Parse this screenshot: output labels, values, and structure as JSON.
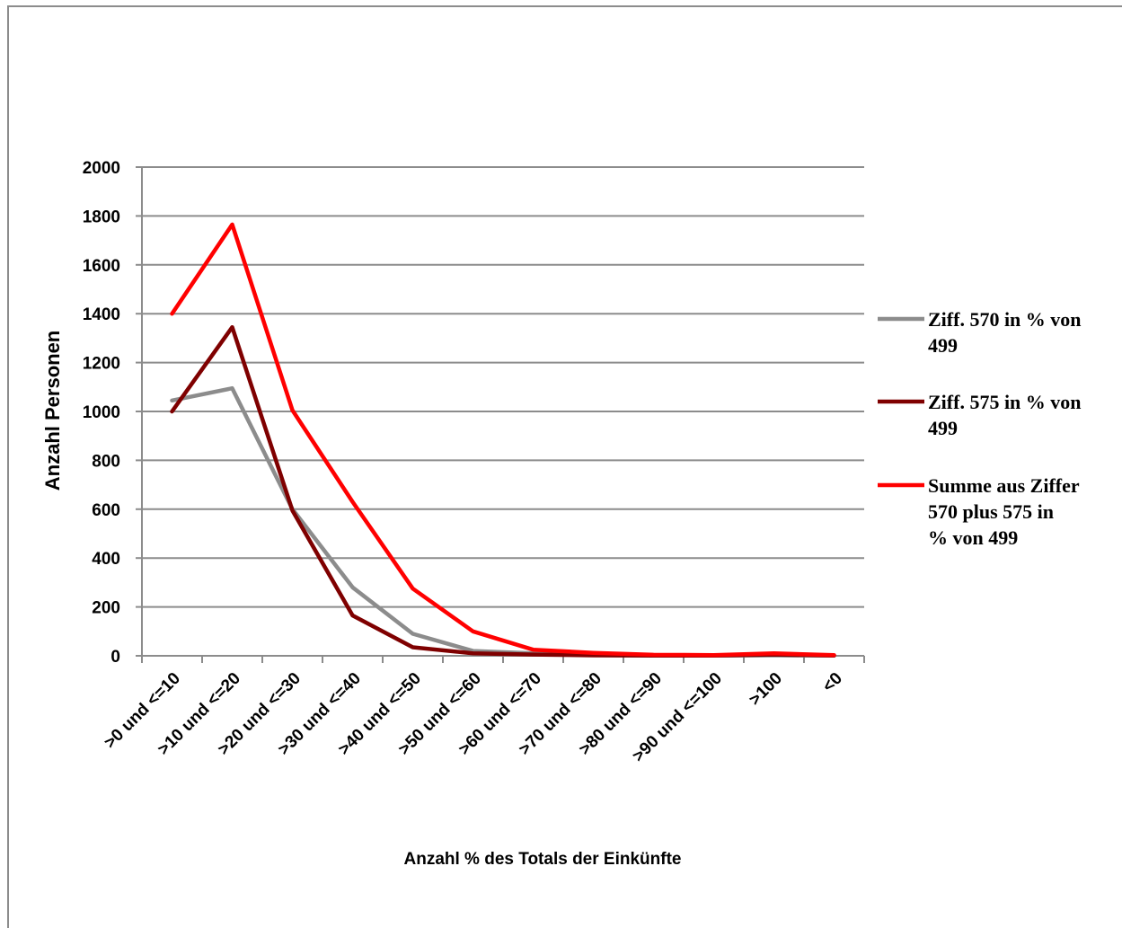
{
  "chart_data": {
    "type": "line",
    "title": "",
    "xlabel": "Anzahl % des  Totals der Einkünfte",
    "ylabel": "Anzahl Personen",
    "ylim": [
      0,
      2000
    ],
    "yticks": [
      0,
      200,
      400,
      600,
      800,
      1000,
      1200,
      1400,
      1600,
      1800,
      2000
    ],
    "grid": "horizontal",
    "legend": "right",
    "categories": [
      ">0 und <=10",
      ">10 und <=20",
      ">20 und <=30",
      ">30 und <=40",
      ">40 und <=50",
      ">50 und <=60",
      ">60 und <=70",
      ">70 und <=80",
      ">80 und <=90",
      ">90 und <=100",
      ">100",
      "<0"
    ],
    "series": [
      {
        "name": "Ziff. 570 in % von 499",
        "legend_lines": [
          "Ziff. 570 in % von",
          "499"
        ],
        "color": "#8c8c8c",
        "values": [
          1045,
          1095,
          600,
          280,
          90,
          20,
          10,
          5,
          2,
          1,
          2,
          1
        ]
      },
      {
        "name": "Ziff. 575 in % von 499",
        "legend_lines": [
          "Ziff. 575 in % von",
          "499"
        ],
        "color": "#7f0000",
        "values": [
          1000,
          1345,
          595,
          165,
          35,
          10,
          5,
          2,
          1,
          1,
          5,
          1
        ]
      },
      {
        "name": "Summe aus Ziffer 570 plus 575 in % von 499",
        "legend_lines": [
          "Summe aus Ziffer",
          "570 plus 575 in",
          "% von 499"
        ],
        "color": "#ff0000",
        "values": [
          1400,
          1765,
          1005,
          630,
          275,
          100,
          25,
          12,
          4,
          3,
          10,
          3
        ]
      }
    ]
  }
}
